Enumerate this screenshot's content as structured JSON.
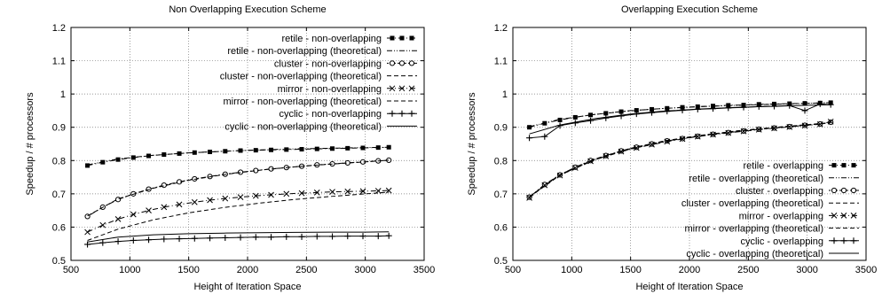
{
  "chart_data": [
    {
      "type": "line",
      "title": "Non Overlapping Execution Scheme",
      "xlabel": "Height of Iteration Space",
      "ylabel": "Speedup / # processors",
      "xlim": [
        500,
        3500
      ],
      "ylim": [
        0.5,
        1.2
      ],
      "xticks": [
        "500",
        "1000",
        "1500",
        "2000",
        "2500",
        "3000",
        "3500"
      ],
      "yticks": [
        "0.5",
        "0.6",
        "0.7",
        "0.8",
        "0.9",
        "1",
        "1.1",
        "1.2"
      ],
      "grid": true,
      "legend_position": "top-right",
      "series": [
        {
          "name": "retile - non-overlapping",
          "style": "dash-dot",
          "marker": "square",
          "x": [
            640,
            770,
            900,
            1030,
            1160,
            1290,
            1420,
            1550,
            1680,
            1810,
            1940,
            2070,
            2200,
            2330,
            2460,
            2590,
            2720,
            2850,
            2980,
            3110,
            3200
          ],
          "y": [
            0.785,
            0.795,
            0.803,
            0.809,
            0.814,
            0.818,
            0.821,
            0.824,
            0.826,
            0.828,
            0.83,
            0.831,
            0.832,
            0.833,
            0.834,
            0.835,
            0.836,
            0.837,
            0.838,
            0.839,
            0.84
          ]
        },
        {
          "name": "retile - non-overlapping (theoretical)",
          "style": "dash-dot-dot",
          "marker": "none",
          "x": [
            640,
            900,
            1200,
            1500,
            1800,
            2100,
            2400,
            2700,
            3000,
            3200
          ],
          "y": [
            0.787,
            0.805,
            0.816,
            0.823,
            0.828,
            0.832,
            0.835,
            0.837,
            0.839,
            0.84
          ]
        },
        {
          "name": "cluster - non-overlapping",
          "style": "dot-dash",
          "marker": "circle",
          "x": [
            640,
            770,
            900,
            1030,
            1160,
            1290,
            1420,
            1550,
            1680,
            1810,
            1940,
            2070,
            2200,
            2330,
            2460,
            2590,
            2720,
            2850,
            2980,
            3110,
            3200
          ],
          "y": [
            0.632,
            0.66,
            0.683,
            0.7,
            0.714,
            0.726,
            0.736,
            0.745,
            0.752,
            0.759,
            0.765,
            0.77,
            0.775,
            0.779,
            0.783,
            0.787,
            0.79,
            0.793,
            0.796,
            0.799,
            0.801
          ]
        },
        {
          "name": "cluster - non-overlapping (theoretical)",
          "style": "dash",
          "marker": "none",
          "x": [
            640,
            900,
            1200,
            1500,
            1800,
            2100,
            2400,
            2700,
            3000,
            3200
          ],
          "y": [
            0.634,
            0.685,
            0.717,
            0.741,
            0.758,
            0.771,
            0.781,
            0.789,
            0.796,
            0.801
          ]
        },
        {
          "name": "mirror - non-overlapping",
          "style": "dash-dot",
          "marker": "x",
          "x": [
            640,
            770,
            900,
            1030,
            1160,
            1290,
            1420,
            1550,
            1680,
            1810,
            1940,
            2070,
            2200,
            2330,
            2460,
            2590,
            2720,
            2850,
            2980,
            3110,
            3200
          ],
          "y": [
            0.585,
            0.606,
            0.624,
            0.638,
            0.65,
            0.66,
            0.668,
            0.675,
            0.681,
            0.686,
            0.69,
            0.694,
            0.697,
            0.7,
            0.702,
            0.704,
            0.706,
            0.707,
            0.708,
            0.709,
            0.71
          ]
        },
        {
          "name": "mirror - non-overlapping (theoretical)",
          "style": "dash",
          "marker": "none",
          "x": [
            640,
            900,
            1200,
            1500,
            1800,
            2100,
            2400,
            2700,
            3000,
            3200
          ],
          "y": [
            0.56,
            0.594,
            0.622,
            0.643,
            0.659,
            0.672,
            0.683,
            0.692,
            0.7,
            0.705
          ]
        },
        {
          "name": "cyclic - non-overlapping",
          "style": "solid",
          "marker": "plus",
          "x": [
            640,
            770,
            900,
            1030,
            1160,
            1290,
            1420,
            1550,
            1680,
            1810,
            1940,
            2070,
            2200,
            2330,
            2460,
            2590,
            2720,
            2850,
            2980,
            3110,
            3200
          ],
          "y": [
            0.548,
            0.553,
            0.557,
            0.56,
            0.562,
            0.564,
            0.565,
            0.566,
            0.567,
            0.568,
            0.569,
            0.57,
            0.57,
            0.571,
            0.571,
            0.572,
            0.572,
            0.573,
            0.573,
            0.573,
            0.574
          ]
        },
        {
          "name": "cyclic - non-overlapping (theoretical)",
          "style": "solid",
          "marker": "none",
          "x": [
            640,
            900,
            1200,
            1500,
            1800,
            2100,
            2400,
            2700,
            3000,
            3200
          ],
          "y": [
            0.555,
            0.57,
            0.577,
            0.58,
            0.582,
            0.583,
            0.584,
            0.585,
            0.585,
            0.586
          ]
        }
      ]
    },
    {
      "type": "line",
      "title": "Overlapping Execution Scheme",
      "xlabel": "Height of Iteration Space",
      "ylabel": "Speedup / # processors",
      "xlim": [
        500,
        3500
      ],
      "ylim": [
        0.5,
        1.2
      ],
      "xticks": [
        "500",
        "1000",
        "1500",
        "2000",
        "2500",
        "3000",
        "3500"
      ],
      "yticks": [
        "0.5",
        "0.6",
        "0.7",
        "0.8",
        "0.9",
        "1",
        "1.1",
        "1.2"
      ],
      "grid": true,
      "legend_position": "bottom-right",
      "series": [
        {
          "name": "retile - overlapping",
          "style": "dash-dot",
          "marker": "square",
          "x": [
            640,
            770,
            900,
            1030,
            1160,
            1290,
            1420,
            1550,
            1680,
            1810,
            1940,
            2070,
            2200,
            2330,
            2460,
            2590,
            2720,
            2850,
            2980,
            3110,
            3200
          ],
          "y": [
            0.9,
            0.912,
            0.922,
            0.93,
            0.937,
            0.942,
            0.947,
            0.951,
            0.954,
            0.957,
            0.96,
            0.962,
            0.964,
            0.966,
            0.967,
            0.969,
            0.97,
            0.971,
            0.972,
            0.973,
            0.974
          ]
        },
        {
          "name": "retile - overlapping (theoretical)",
          "style": "dash-dot-dot",
          "marker": "none",
          "x": [
            640,
            900,
            1200,
            1500,
            1800,
            2100,
            2400,
            2700,
            3000,
            3200
          ],
          "y": [
            0.902,
            0.924,
            0.939,
            0.95,
            0.957,
            0.962,
            0.966,
            0.969,
            0.972,
            0.974
          ]
        },
        {
          "name": "cluster - overlapping",
          "style": "dot-dash",
          "marker": "circle",
          "x": [
            640,
            770,
            900,
            1030,
            1160,
            1290,
            1420,
            1550,
            1680,
            1810,
            1940,
            2070,
            2200,
            2330,
            2460,
            2590,
            2720,
            2850,
            2980,
            3110,
            3200
          ],
          "y": [
            0.69,
            0.728,
            0.757,
            0.78,
            0.8,
            0.815,
            0.829,
            0.84,
            0.85,
            0.859,
            0.866,
            0.873,
            0.879,
            0.884,
            0.889,
            0.894,
            0.898,
            0.902,
            0.906,
            0.91,
            0.915
          ]
        },
        {
          "name": "cluster - overlapping (theoretical)",
          "style": "dash",
          "marker": "none",
          "x": [
            640,
            900,
            1200,
            1500,
            1800,
            2100,
            2400,
            2700,
            3000,
            3200
          ],
          "y": [
            0.692,
            0.758,
            0.805,
            0.837,
            0.86,
            0.876,
            0.889,
            0.899,
            0.908,
            0.914
          ]
        },
        {
          "name": "mirror - overlapping",
          "style": "dash-dot",
          "marker": "x",
          "x": [
            640,
            770,
            900,
            1030,
            1160,
            1290,
            1420,
            1550,
            1680,
            1810,
            1940,
            2070,
            2200,
            2330,
            2460,
            2590,
            2720,
            2850,
            2980,
            3110,
            3200
          ],
          "y": [
            0.688,
            0.726,
            0.755,
            0.778,
            0.798,
            0.813,
            0.827,
            0.838,
            0.848,
            0.857,
            0.865,
            0.872,
            0.878,
            0.883,
            0.888,
            0.893,
            0.897,
            0.901,
            0.905,
            0.909,
            0.917
          ]
        },
        {
          "name": "mirror - overlapping (theoretical)",
          "style": "dash",
          "marker": "none",
          "x": [
            640,
            900,
            1200,
            1500,
            1800,
            2100,
            2400,
            2700,
            3000,
            3200
          ],
          "y": [
            0.69,
            0.756,
            0.803,
            0.835,
            0.858,
            0.875,
            0.888,
            0.898,
            0.907,
            0.913
          ]
        },
        {
          "name": "cyclic - overlapping",
          "style": "solid",
          "marker": "plus",
          "x": [
            640,
            770,
            900,
            1030,
            1160,
            1290,
            1420,
            1550,
            1680,
            1810,
            1940,
            2070,
            2200,
            2330,
            2460,
            2590,
            2720,
            2850,
            2980,
            3110,
            3200
          ],
          "y": [
            0.868,
            0.872,
            0.905,
            0.913,
            0.92,
            0.928,
            0.934,
            0.94,
            0.944,
            0.948,
            0.951,
            0.954,
            0.956,
            0.958,
            0.96,
            0.962,
            0.963,
            0.965,
            0.95,
            0.97,
            0.968
          ]
        },
        {
          "name": "cyclic - overlapping (theoretical)",
          "style": "solid",
          "marker": "none",
          "x": [
            640,
            900,
            1200,
            1500,
            1800,
            2100,
            2400,
            2700,
            3000,
            3200
          ],
          "y": [
            0.88,
            0.907,
            0.926,
            0.94,
            0.949,
            0.955,
            0.96,
            0.963,
            0.966,
            0.968
          ]
        }
      ]
    }
  ]
}
